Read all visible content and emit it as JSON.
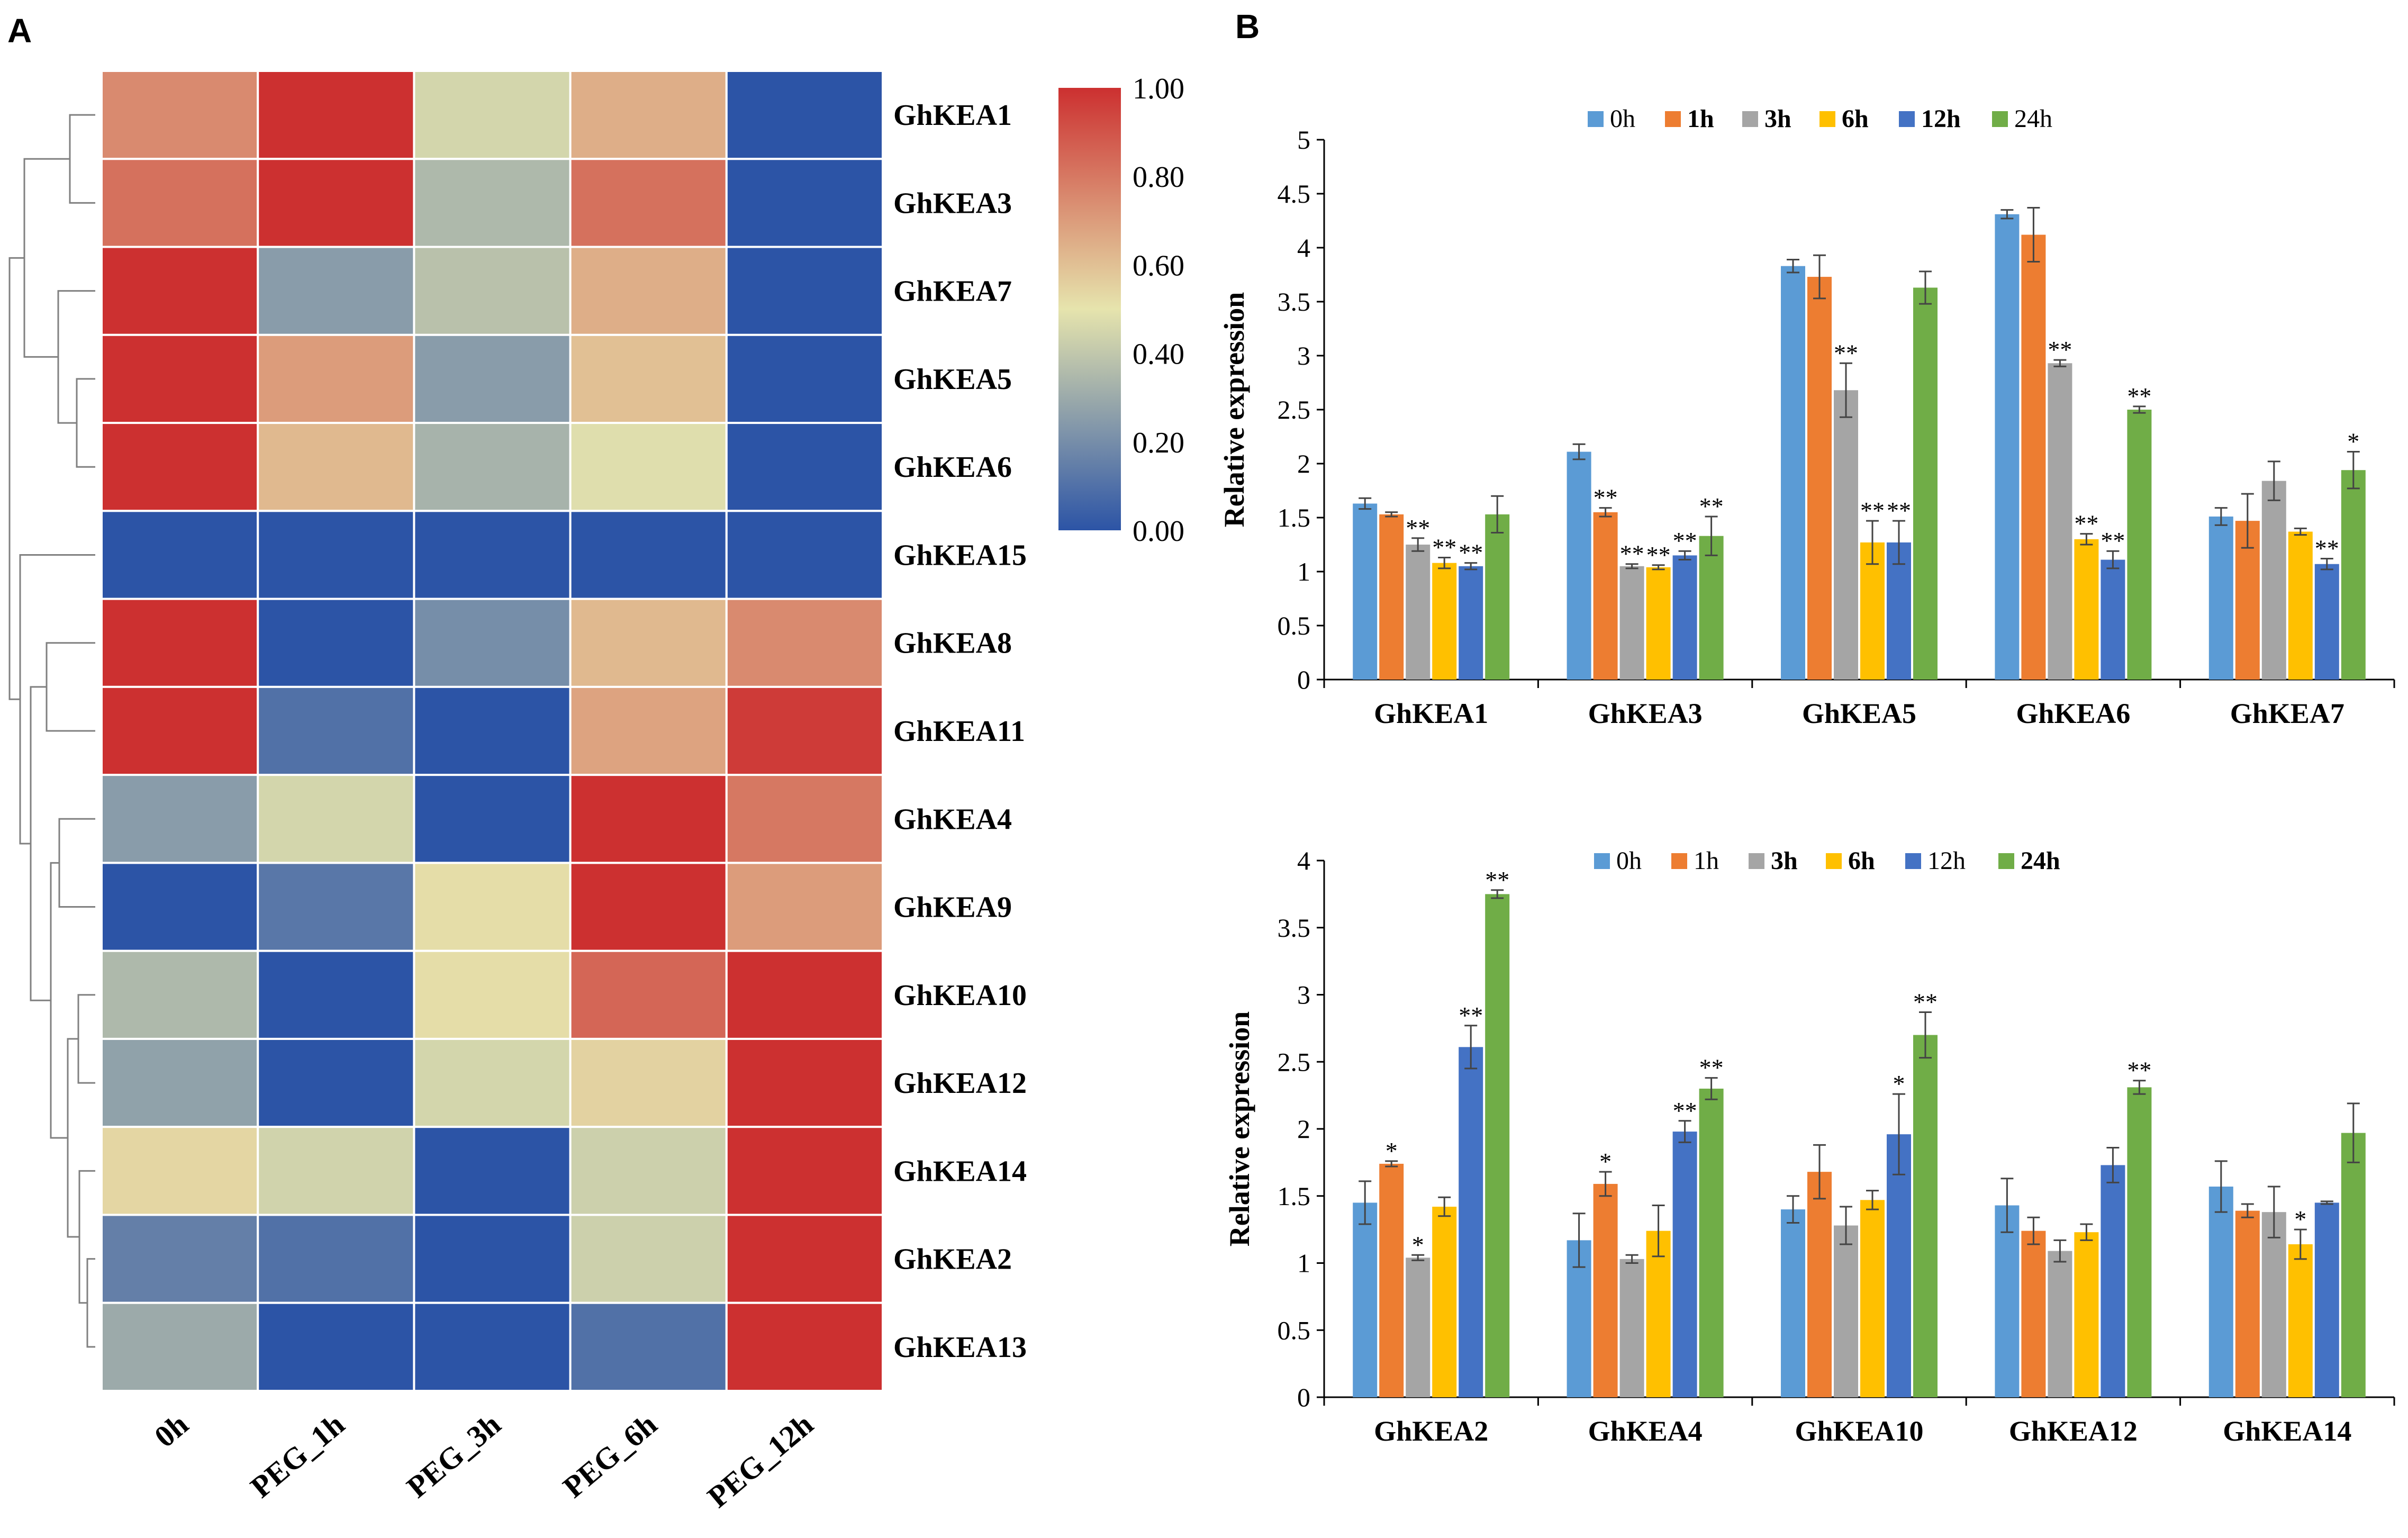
{
  "panels": {
    "left_label": "A",
    "right_label": "B"
  },
  "chart_data": [
    {
      "type": "heatmap",
      "columns": [
        "0h",
        "PEG_1h",
        "PEG_3h",
        "PEG_6h",
        "PEG_12h"
      ],
      "rows": [
        "GhKEA1",
        "GhKEA3",
        "GhKEA7",
        "GhKEA5",
        "GhKEA6",
        "GhKEA15",
        "GhKEA8",
        "GhKEA11",
        "GhKEA4",
        "GhKEA9",
        "GhKEA10",
        "GhKEA12",
        "GhKEA14",
        "GhKEA2",
        "GhKEA13"
      ],
      "values": [
        [
          0.75,
          1.0,
          0.45,
          0.65,
          0.0
        ],
        [
          0.82,
          1.0,
          0.35,
          0.82,
          0.0
        ],
        [
          1.0,
          0.25,
          0.38,
          0.65,
          0.0
        ],
        [
          1.0,
          0.7,
          0.25,
          0.6,
          0.0
        ],
        [
          1.0,
          0.62,
          0.33,
          0.48,
          0.0
        ],
        [
          0.0,
          0.0,
          0.0,
          0.0,
          0.0
        ],
        [
          1.0,
          0.0,
          0.2,
          0.62,
          0.75
        ],
        [
          1.0,
          0.1,
          0.0,
          0.68,
          0.97
        ],
        [
          0.25,
          0.45,
          0.0,
          1.0,
          0.8
        ],
        [
          0.0,
          0.12,
          0.52,
          1.0,
          0.7
        ],
        [
          0.35,
          0.0,
          0.52,
          0.85,
          1.0
        ],
        [
          0.27,
          0.0,
          0.45,
          0.55,
          1.0
        ],
        [
          0.54,
          0.44,
          0.0,
          0.43,
          1.0
        ],
        [
          0.15,
          0.1,
          0.0,
          0.43,
          1.0
        ],
        [
          0.3,
          0.0,
          0.0,
          0.1,
          1.0
        ]
      ],
      "colorbar": {
        "min": 0,
        "max": 1,
        "ticks": [
          "1.00",
          "0.80",
          "0.60",
          "0.40",
          "0.20",
          "0.00"
        ]
      },
      "colors": {
        "low": "#2c54a6",
        "mid": "#e6e4ad",
        "high": "#cc3030"
      },
      "dendrogram": "row clustering tree (left)"
    },
    {
      "type": "bar",
      "title": "",
      "ylabel": "Relative expression",
      "ylim": [
        0,
        5
      ],
      "yticks": [
        "0",
        "0.5",
        "1",
        "1.5",
        "2",
        "2.5",
        "3",
        "3.5",
        "4",
        "4.5",
        "5"
      ],
      "categories": [
        "GhKEA1",
        "GhKEA3",
        "GhKEA5",
        "GhKEA6",
        "GhKEA7"
      ],
      "legend": [
        "0h",
        "1h",
        "3h",
        "6h",
        "12h",
        "24h"
      ],
      "series": [
        {
          "name": "0h",
          "color": "#5b9bd5",
          "values": [
            1.63,
            2.11,
            3.83,
            4.31,
            1.51
          ],
          "errors": [
            0.05,
            0.07,
            0.06,
            0.04,
            0.08
          ],
          "sig": [
            "",
            "",
            "",
            "",
            ""
          ]
        },
        {
          "name": "1h",
          "color": "#ed7d31",
          "values": [
            1.53,
            1.55,
            3.73,
            4.12,
            1.47
          ],
          "errors": [
            0.02,
            0.04,
            0.2,
            0.25,
            0.25
          ],
          "sig": [
            "",
            "**",
            "",
            "",
            ""
          ]
        },
        {
          "name": "3h",
          "color": "#a5a5a5",
          "values": [
            1.25,
            1.05,
            2.68,
            2.93,
            1.84
          ],
          "errors": [
            0.06,
            0.02,
            0.25,
            0.03,
            0.18
          ],
          "sig": [
            "**",
            "**",
            "**",
            "**",
            ""
          ]
        },
        {
          "name": "6h",
          "color": "#ffc000",
          "values": [
            1.08,
            1.04,
            1.27,
            1.3,
            1.37
          ],
          "errors": [
            0.05,
            0.02,
            0.2,
            0.05,
            0.03
          ],
          "sig": [
            "**",
            "**",
            "**",
            "**",
            ""
          ]
        },
        {
          "name": "12h",
          "color": "#4472c4",
          "values": [
            1.05,
            1.15,
            1.27,
            1.11,
            1.07
          ],
          "errors": [
            0.03,
            0.04,
            0.2,
            0.08,
            0.05
          ],
          "sig": [
            "**",
            "**",
            "**",
            "**",
            "**"
          ]
        },
        {
          "name": "24h",
          "color": "#70ad47",
          "values": [
            1.53,
            1.33,
            3.63,
            2.5,
            1.94
          ],
          "errors": [
            0.17,
            0.18,
            0.15,
            0.03,
            0.17
          ],
          "sig": [
            "",
            "**",
            "",
            "**",
            "*"
          ]
        }
      ]
    },
    {
      "type": "bar",
      "title": "",
      "ylabel": "Relative expression",
      "ylim": [
        0,
        4
      ],
      "yticks": [
        "0",
        "0.5",
        "1",
        "1.5",
        "2",
        "2.5",
        "3",
        "3.5",
        "4"
      ],
      "categories": [
        "GhKEA2",
        "GhKEA4",
        "GhKEA10",
        "GhKEA12",
        "GhKEA14"
      ],
      "legend": [
        "0h",
        "1h",
        "3h",
        "6h",
        "12h",
        "24h"
      ],
      "series": [
        {
          "name": "0h",
          "color": "#5b9bd5",
          "values": [
            1.45,
            1.17,
            1.4,
            1.43,
            1.57
          ],
          "errors": [
            0.16,
            0.2,
            0.1,
            0.2,
            0.19
          ],
          "sig": [
            "",
            "",
            "",
            "",
            ""
          ]
        },
        {
          "name": "1h",
          "color": "#ed7d31",
          "values": [
            1.74,
            1.59,
            1.68,
            1.24,
            1.39
          ],
          "errors": [
            0.02,
            0.09,
            0.2,
            0.1,
            0.05
          ],
          "sig": [
            "*",
            "*",
            "",
            "",
            ""
          ]
        },
        {
          "name": "3h",
          "color": "#a5a5a5",
          "values": [
            1.04,
            1.03,
            1.28,
            1.09,
            1.38
          ],
          "errors": [
            0.02,
            0.03,
            0.14,
            0.08,
            0.19
          ],
          "sig": [
            "*",
            "",
            "",
            "",
            ""
          ]
        },
        {
          "name": "6h",
          "color": "#ffc000",
          "values": [
            1.42,
            1.24,
            1.47,
            1.23,
            1.14
          ],
          "errors": [
            0.07,
            0.19,
            0.07,
            0.06,
            0.11
          ],
          "sig": [
            "",
            "",
            "",
            "",
            "*"
          ]
        },
        {
          "name": "12h",
          "color": "#4472c4",
          "values": [
            2.61,
            1.98,
            1.96,
            1.73,
            1.45
          ],
          "errors": [
            0.16,
            0.08,
            0.3,
            0.13,
            0.01
          ],
          "sig": [
            "**",
            "**",
            "*",
            "",
            ""
          ]
        },
        {
          "name": "24h",
          "color": "#70ad47",
          "values": [
            3.75,
            2.3,
            2.7,
            2.31,
            1.97
          ],
          "errors": [
            0.03,
            0.08,
            0.17,
            0.05,
            0.22
          ],
          "sig": [
            "**",
            "**",
            "**",
            "**",
            ""
          ]
        }
      ]
    }
  ]
}
